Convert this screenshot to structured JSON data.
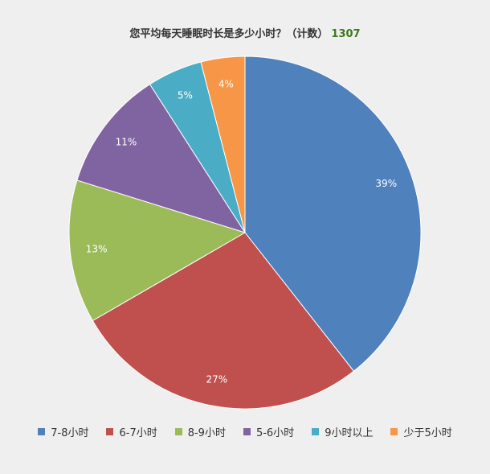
{
  "chart_data": {
    "type": "pie",
    "title": "您平均每天睡眠时长是多少小时？（计数）",
    "total": "1307",
    "categories": [
      "7-8小时",
      "6-7小时",
      "8-9小时",
      "5-6小时",
      "9小时以上",
      "少于5小时"
    ],
    "values": [
      39,
      27,
      13,
      11,
      5,
      4
    ],
    "labels": [
      "39%",
      "27%",
      "13%",
      "11%",
      "5%",
      "4%"
    ],
    "colors": [
      "#4f81bd",
      "#c0504d",
      "#9bbb59",
      "#8064a2",
      "#4bacc6",
      "#f79646"
    ],
    "legend_position": "bottom"
  }
}
